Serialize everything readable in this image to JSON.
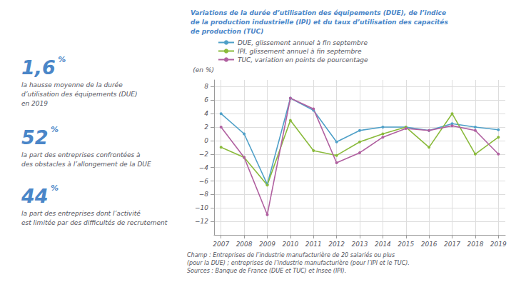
{
  "chart_data": {
    "type": "line",
    "title": "Variations de la durée d’utilisation des équipements (DUE), de l’indice\nde la production industrielle (IPI) et du taux d’utilisation des capacités\nde production (TUC)",
    "y_label": "(en %)",
    "x": [
      2007,
      2008,
      2009,
      2010,
      2011,
      2012,
      2013,
      2014,
      2015,
      2016,
      2017,
      2018,
      2019
    ],
    "series": [
      {
        "name": "DUE, glissement annuel à fin septembre",
        "color": "#4fa0c8",
        "values": [
          4.0,
          1.0,
          -6.5,
          6.3,
          4.5,
          -0.2,
          1.5,
          2.0,
          2.0,
          1.5,
          2.5,
          2.0,
          1.6
        ]
      },
      {
        "name": "IPI, glissement annuel à fin septembre",
        "color": "#8aba3b",
        "values": [
          -1.0,
          -2.5,
          -6.6,
          3.0,
          -1.5,
          -2.2,
          -0.2,
          1.0,
          2.0,
          -1.0,
          4.0,
          -2.0,
          0.5
        ]
      },
      {
        "name": "TUC, variation en points de pourcentage",
        "color": "#b060a0",
        "values": [
          2.0,
          -2.5,
          -11.0,
          6.3,
          4.7,
          -3.3,
          -1.8,
          0.5,
          1.8,
          1.5,
          2.2,
          1.5,
          -2.0
        ]
      }
    ],
    "xlim": [
      2006.7,
      2019.3
    ],
    "xticks": [
      2007,
      2008,
      2009,
      2010,
      2011,
      2012,
      2013,
      2014,
      2015,
      2016,
      2017,
      2018,
      2019
    ],
    "ylim": [
      -14,
      9
    ],
    "yticks": [
      {
        "value": -12,
        "label": "−12"
      },
      {
        "value": -10,
        "label": "−10"
      },
      {
        "value": -8,
        "label": "−8"
      },
      {
        "value": -6,
        "label": "−6"
      },
      {
        "value": -4,
        "label": "−4"
      },
      {
        "value": -2,
        "label": "−2"
      },
      0,
      2,
      4,
      6,
      8
    ],
    "grid": true,
    "legend": "top-left",
    "marker": "circle",
    "annotations": [
      {
        "big": "1,6",
        "unit": "%",
        "text": "la hausse moyenne de la durée\nd’utilisation des équipements (DUE)\nen 2019"
      },
      {
        "big": "52",
        "unit": "%",
        "text": "la part des entreprises confrontées à\ndes obstacles à l’allongement de la DUE"
      },
      {
        "big": "44",
        "unit": "%",
        "text": "la part des entreprises dont l’activité\nest limitée par des difficultés de recrutement"
      }
    ],
    "footnote": [
      "Champ : Entreprises de l’industrie manufacturière de 20 salariés ou plus",
      "(pour la DUE) ; entreprises de l’industrie manufacturière (pour l’IPI et le TUC).",
      "Sources : Banque de France (DUE et TUC) et Insee (IPI)."
    ]
  }
}
